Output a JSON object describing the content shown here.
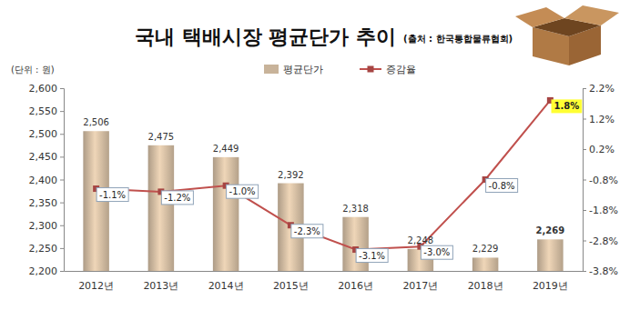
{
  "chart_data": {
    "type": "bar",
    "title": "국내 택배시장 평균단가 추이",
    "subtitle": "(출처 : 한국통합물류협회)",
    "y_label": "(단위 : 원)",
    "categories": [
      "2012년",
      "2013년",
      "2014년",
      "2015년",
      "2016년",
      "2017년",
      "2018년",
      "2019년"
    ],
    "series": [
      {
        "name": "평균단가",
        "type": "bar",
        "color": "#c8b39a",
        "values": [
          2506,
          2475,
          2449,
          2392,
          2318,
          2248,
          2229,
          2269
        ],
        "value_labels": [
          "2,506",
          "2,475",
          "2,449",
          "2,392",
          "2,318",
          "2,248",
          "2,229",
          "2,269"
        ]
      },
      {
        "name": "증감율",
        "type": "line",
        "axis": "y2",
        "color": "#c0504d",
        "marker": "square",
        "line_style": "solid",
        "values": [
          -1.1,
          -1.2,
          -1.0,
          -2.3,
          -3.1,
          -3.0,
          -0.8,
          1.8
        ],
        "value_labels": [
          "-1.1%",
          "-1.2%",
          "-1.0%",
          "-2.3%",
          "-3.1%",
          "-3.0%",
          "-0.8%",
          "1.8%"
        ]
      }
    ],
    "ylim": [
      2200,
      2600
    ],
    "yticks": [
      {
        "value": 2200,
        "label": "2,200"
      },
      {
        "value": 2250,
        "label": "2,250"
      },
      {
        "value": 2300,
        "label": "2,300"
      },
      {
        "value": 2350,
        "label": "2,350"
      },
      {
        "value": 2400,
        "label": "2,400"
      },
      {
        "value": 2450,
        "label": "2,450"
      },
      {
        "value": 2500,
        "label": "2,500"
      },
      {
        "value": 2550,
        "label": "2,550"
      },
      {
        "value": 2600,
        "label": "2,600"
      }
    ],
    "y2lim": [
      -3.8,
      2.2
    ],
    "y2ticks": [
      {
        "value": -3.8,
        "label": "-3.8%"
      },
      {
        "value": -2.8,
        "label": "-2.8%"
      },
      {
        "value": -1.8,
        "label": "-1.8%"
      },
      {
        "value": -0.8,
        "label": "-0.8%"
      },
      {
        "value": 0.2,
        "label": "0.2%"
      },
      {
        "value": 1.2,
        "label": "1.2%"
      },
      {
        "value": 2.2,
        "label": "2.2%"
      }
    ],
    "data_labels": true,
    "grid": false,
    "legend": "top"
  }
}
